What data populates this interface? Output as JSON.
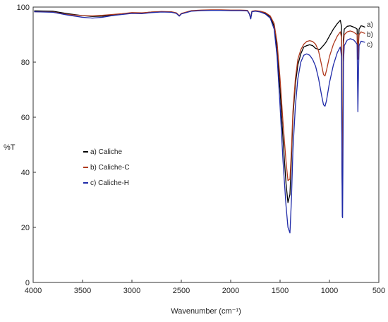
{
  "chart_data": {
    "type": "line",
    "title": "",
    "xlabel": "Wavenumber (cm⁻¹)",
    "ylabel": "%T",
    "xlim": [
      4000,
      500
    ],
    "ylim": [
      0,
      100
    ],
    "x_reversed": true,
    "x_ticks": [
      4000,
      3500,
      3000,
      2500,
      2000,
      1500,
      1000,
      500
    ],
    "y_ticks": [
      0,
      20,
      40,
      60,
      80,
      100
    ],
    "grid": false,
    "legend_position": "middle-left",
    "series": [
      {
        "name": "a) Caliche",
        "end_label": "a)",
        "color": "#000000",
        "points": [
          [
            3990,
            98.6
          ],
          [
            3800,
            98.5
          ],
          [
            3650,
            97.6
          ],
          [
            3500,
            96.9
          ],
          [
            3400,
            96.6
          ],
          [
            3300,
            96.7
          ],
          [
            3200,
            97.0
          ],
          [
            3100,
            97.5
          ],
          [
            3000,
            97.9
          ],
          [
            2900,
            97.8
          ],
          [
            2800,
            98.2
          ],
          [
            2700,
            98.3
          ],
          [
            2600,
            98.2
          ],
          [
            2550,
            97.8
          ],
          [
            2520,
            96.8
          ],
          [
            2500,
            97.6
          ],
          [
            2400,
            98.6
          ],
          [
            2300,
            98.8
          ],
          [
            2200,
            98.9
          ],
          [
            2100,
            98.9
          ],
          [
            2000,
            98.8
          ],
          [
            1900,
            98.8
          ],
          [
            1830,
            98.7
          ],
          [
            1810,
            97.5
          ],
          [
            1797,
            95.8
          ],
          [
            1785,
            98.4
          ],
          [
            1750,
            98.6
          ],
          [
            1700,
            98.4
          ],
          [
            1650,
            97.8
          ],
          [
            1600,
            96.5
          ],
          [
            1560,
            93.0
          ],
          [
            1530,
            85.0
          ],
          [
            1500,
            70.0
          ],
          [
            1470,
            52.0
          ],
          [
            1440,
            36.0
          ],
          [
            1420,
            29.0
          ],
          [
            1400,
            32.0
          ],
          [
            1385,
            45.0
          ],
          [
            1370,
            60.0
          ],
          [
            1345,
            72.0
          ],
          [
            1320,
            79.0
          ],
          [
            1290,
            83.0
          ],
          [
            1260,
            85.5
          ],
          [
            1230,
            86.0
          ],
          [
            1200,
            86.3
          ],
          [
            1170,
            86.0
          ],
          [
            1140,
            85.0
          ],
          [
            1100,
            84.5
          ],
          [
            1075,
            85.5
          ],
          [
            1050,
            86.5
          ],
          [
            1030,
            87.5
          ],
          [
            1000,
            89.5
          ],
          [
            960,
            92.0
          ],
          [
            920,
            94.0
          ],
          [
            890,
            95.2
          ],
          [
            878,
            93.0
          ],
          [
            873,
            45.0
          ],
          [
            869,
            30.0
          ],
          [
            866,
            45.0
          ],
          [
            860,
            88.0
          ],
          [
            850,
            92.0
          ],
          [
            820,
            93.0
          ],
          [
            790,
            93.2
          ],
          [
            760,
            92.8
          ],
          [
            740,
            92.5
          ],
          [
            720,
            92.0
          ],
          [
            716,
            86.0
          ],
          [
            712,
            83.0
          ],
          [
            708,
            87.0
          ],
          [
            700,
            92.0
          ],
          [
            680,
            93.2
          ],
          [
            660,
            93.0
          ],
          [
            640,
            92.7
          ]
        ]
      },
      {
        "name": "b) Caliche-C",
        "end_label": "b)",
        "color": "#b03a1e",
        "points": [
          [
            3990,
            98.3
          ],
          [
            3800,
            98.2
          ],
          [
            3650,
            97.3
          ],
          [
            3500,
            96.9
          ],
          [
            3400,
            96.8
          ],
          [
            3300,
            97.0
          ],
          [
            3200,
            97.3
          ],
          [
            3100,
            97.6
          ],
          [
            3000,
            98.0
          ],
          [
            2900,
            97.9
          ],
          [
            2800,
            98.2
          ],
          [
            2700,
            98.4
          ],
          [
            2600,
            98.3
          ],
          [
            2550,
            97.9
          ],
          [
            2520,
            96.9
          ],
          [
            2500,
            97.7
          ],
          [
            2400,
            98.7
          ],
          [
            2300,
            98.9
          ],
          [
            2200,
            99.0
          ],
          [
            2100,
            99.0
          ],
          [
            2000,
            98.9
          ],
          [
            1900,
            98.9
          ],
          [
            1830,
            98.8
          ],
          [
            1810,
            97.6
          ],
          [
            1797,
            95.9
          ],
          [
            1785,
            98.5
          ],
          [
            1750,
            98.7
          ],
          [
            1700,
            98.5
          ],
          [
            1650,
            98.0
          ],
          [
            1600,
            96.8
          ],
          [
            1560,
            94.0
          ],
          [
            1530,
            87.0
          ],
          [
            1500,
            74.0
          ],
          [
            1470,
            58.0
          ],
          [
            1440,
            44.0
          ],
          [
            1420,
            37.0
          ],
          [
            1400,
            37.5
          ],
          [
            1385,
            48.0
          ],
          [
            1370,
            62.0
          ],
          [
            1345,
            74.0
          ],
          [
            1320,
            81.0
          ],
          [
            1290,
            84.5
          ],
          [
            1260,
            86.5
          ],
          [
            1230,
            87.5
          ],
          [
            1200,
            87.8
          ],
          [
            1170,
            87.5
          ],
          [
            1140,
            86.5
          ],
          [
            1110,
            84.0
          ],
          [
            1080,
            79.0
          ],
          [
            1060,
            75.5
          ],
          [
            1045,
            75.0
          ],
          [
            1030,
            77.0
          ],
          [
            1000,
            82.0
          ],
          [
            960,
            86.5
          ],
          [
            920,
            89.5
          ],
          [
            890,
            91.0
          ],
          [
            878,
            89.0
          ],
          [
            873,
            45.0
          ],
          [
            869,
            30.0
          ],
          [
            866,
            45.0
          ],
          [
            860,
            86.0
          ],
          [
            850,
            90.0
          ],
          [
            820,
            91.0
          ],
          [
            790,
            91.3
          ],
          [
            760,
            91.0
          ],
          [
            740,
            90.5
          ],
          [
            720,
            90.0
          ],
          [
            716,
            84.0
          ],
          [
            712,
            81.0
          ],
          [
            708,
            85.0
          ],
          [
            700,
            90.0
          ],
          [
            680,
            91.0
          ],
          [
            660,
            90.7
          ],
          [
            640,
            90.4
          ]
        ]
      },
      {
        "name": "c) Caliche-H",
        "end_label": "c)",
        "color": "#1f2aa8",
        "points": [
          [
            3990,
            98.3
          ],
          [
            3800,
            98.1
          ],
          [
            3650,
            97.1
          ],
          [
            3500,
            96.3
          ],
          [
            3400,
            96.0
          ],
          [
            3300,
            96.3
          ],
          [
            3200,
            96.9
          ],
          [
            3100,
            97.3
          ],
          [
            3000,
            97.7
          ],
          [
            2900,
            97.6
          ],
          [
            2800,
            98.0
          ],
          [
            2700,
            98.2
          ],
          [
            2600,
            98.1
          ],
          [
            2550,
            97.7
          ],
          [
            2520,
            96.7
          ],
          [
            2500,
            97.5
          ],
          [
            2400,
            98.5
          ],
          [
            2300,
            98.7
          ],
          [
            2200,
            98.8
          ],
          [
            2100,
            98.8
          ],
          [
            2000,
            98.7
          ],
          [
            1900,
            98.7
          ],
          [
            1830,
            98.6
          ],
          [
            1810,
            97.4
          ],
          [
            1797,
            95.7
          ],
          [
            1785,
            98.3
          ],
          [
            1750,
            98.5
          ],
          [
            1700,
            98.2
          ],
          [
            1650,
            97.5
          ],
          [
            1600,
            96.0
          ],
          [
            1560,
            92.0
          ],
          [
            1530,
            82.0
          ],
          [
            1500,
            64.0
          ],
          [
            1470,
            44.0
          ],
          [
            1440,
            28.0
          ],
          [
            1420,
            20.0
          ],
          [
            1400,
            18.0
          ],
          [
            1385,
            30.0
          ],
          [
            1370,
            48.0
          ],
          [
            1345,
            64.0
          ],
          [
            1320,
            74.0
          ],
          [
            1290,
            80.0
          ],
          [
            1260,
            82.5
          ],
          [
            1230,
            83.0
          ],
          [
            1200,
            82.5
          ],
          [
            1170,
            81.0
          ],
          [
            1140,
            78.5
          ],
          [
            1110,
            74.0
          ],
          [
            1080,
            68.0
          ],
          [
            1060,
            64.5
          ],
          [
            1045,
            64.0
          ],
          [
            1030,
            66.0
          ],
          [
            1000,
            72.5
          ],
          [
            960,
            79.0
          ],
          [
            920,
            83.5
          ],
          [
            890,
            85.5
          ],
          [
            878,
            82.0
          ],
          [
            873,
            40.0
          ],
          [
            870,
            24.0
          ],
          [
            867,
            23.5
          ],
          [
            864,
            40.0
          ],
          [
            858,
            80.0
          ],
          [
            850,
            86.0
          ],
          [
            820,
            88.0
          ],
          [
            790,
            88.5
          ],
          [
            760,
            88.2
          ],
          [
            740,
            87.5
          ],
          [
            720,
            86.5
          ],
          [
            716,
            74.0
          ],
          [
            712,
            62.0
          ],
          [
            708,
            72.0
          ],
          [
            700,
            86.0
          ],
          [
            680,
            87.6
          ],
          [
            660,
            87.4
          ],
          [
            640,
            87.2
          ]
        ]
      }
    ]
  }
}
